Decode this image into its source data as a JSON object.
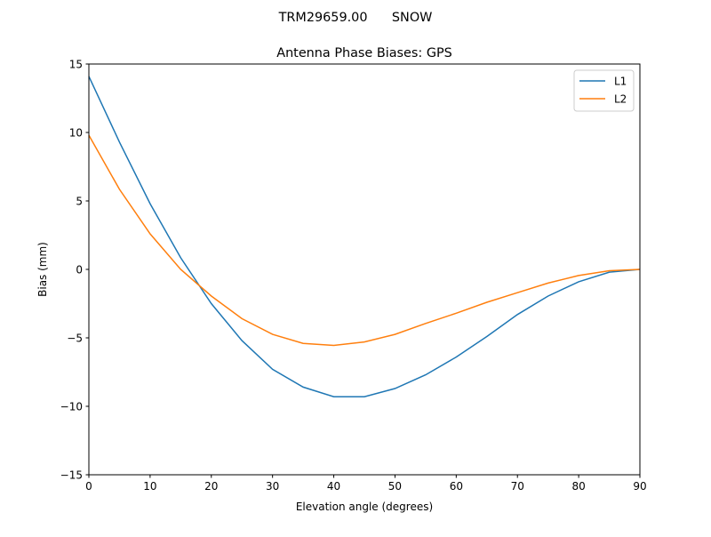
{
  "chart_data": {
    "type": "line",
    "suptitle": "TRM29659.00      SNOW",
    "title": "Antenna Phase Biases: GPS",
    "xlabel": "Elevation angle (degrees)",
    "ylabel": "Bias (mm)",
    "xlim": [
      0,
      90
    ],
    "ylim": [
      -15,
      15
    ],
    "xticks": [
      0,
      10,
      20,
      30,
      40,
      50,
      60,
      70,
      80,
      90
    ],
    "xtick_labels": [
      "0",
      "10",
      "20",
      "30",
      "40",
      "50",
      "60",
      "70",
      "80",
      "90"
    ],
    "yticks": [
      -15,
      -10,
      -5,
      0,
      5,
      10,
      15
    ],
    "ytick_labels": [
      "−15",
      "−10",
      "−5",
      "0",
      "5",
      "10",
      "15"
    ],
    "grid": false,
    "legend_position": "top-right",
    "x": [
      0,
      5,
      10,
      15,
      20,
      25,
      30,
      35,
      40,
      45,
      50,
      55,
      60,
      65,
      70,
      75,
      80,
      85,
      90
    ],
    "series": [
      {
        "name": "L1",
        "color": "#1f77b4",
        "values": [
          14.1,
          9.3,
          4.8,
          0.85,
          -2.5,
          -5.2,
          -7.3,
          -8.6,
          -9.3,
          -9.3,
          -8.7,
          -7.7,
          -6.4,
          -4.9,
          -3.3,
          -1.95,
          -0.9,
          -0.2,
          0
        ]
      },
      {
        "name": "L2",
        "color": "#ff7f0e",
        "values": [
          9.8,
          5.85,
          2.6,
          0.0,
          -1.95,
          -3.6,
          -4.75,
          -5.4,
          -5.55,
          -5.3,
          -4.75,
          -3.95,
          -3.2,
          -2.4,
          -1.7,
          -1.0,
          -0.45,
          -0.1,
          0
        ]
      }
    ]
  }
}
